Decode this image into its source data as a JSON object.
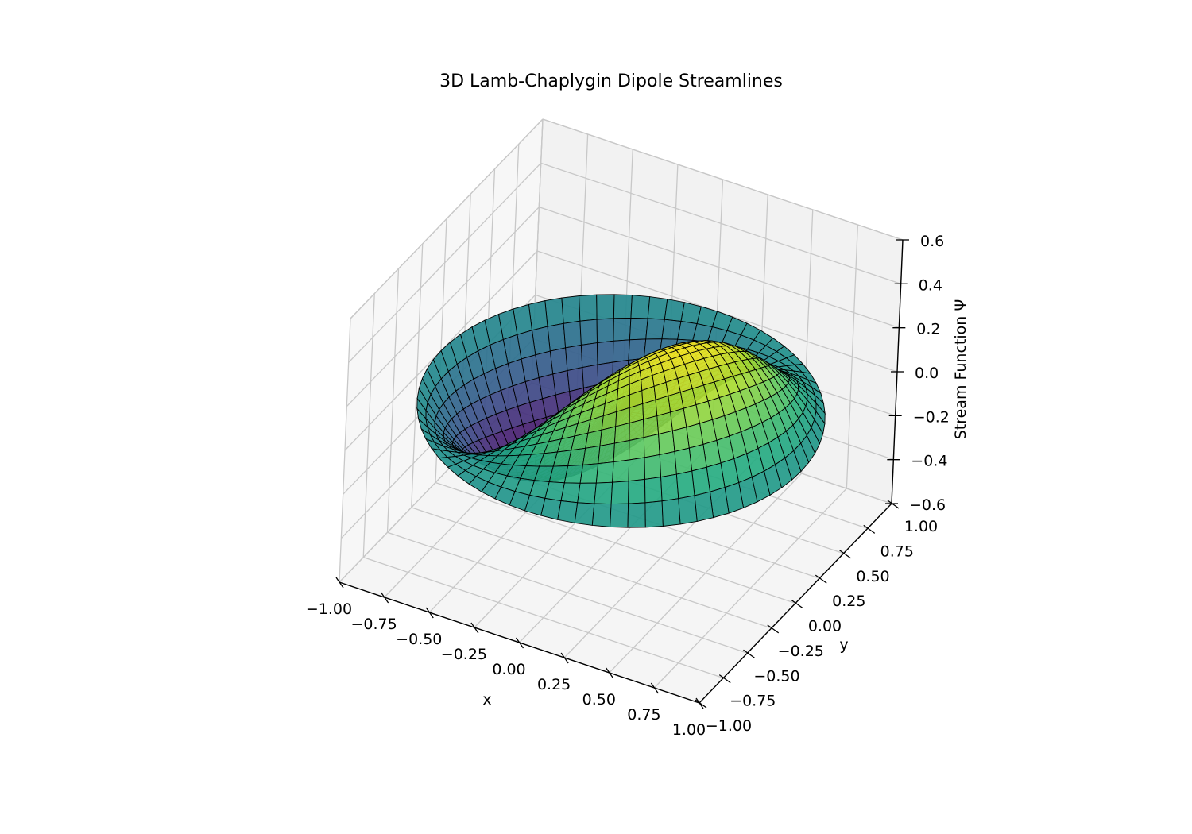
{
  "chart_data": {
    "type": "surface",
    "title": "3D Lamb-Chaplygin Dipole Streamlines",
    "xlabel": "x",
    "ylabel": "y",
    "zlabel": "Stream Function Ψ",
    "xlim": [
      -1.0,
      1.0
    ],
    "ylim": [
      -1.0,
      1.0
    ],
    "zlim": [
      -0.6,
      0.6
    ],
    "x_ticks": [
      "−1.00",
      "−0.75",
      "−0.50",
      "−0.25",
      "0.00",
      "0.25",
      "0.50",
      "0.75",
      "1.00"
    ],
    "y_ticks": [
      "−1.00",
      "−0.75",
      "−0.50",
      "−0.25",
      "0.00",
      "0.25",
      "0.50",
      "0.75",
      "1.00"
    ],
    "z_ticks": [
      "−0.6",
      "−0.4",
      "−0.2",
      "0.0",
      "0.2",
      "0.4",
      "0.6"
    ],
    "x_tick_values": [
      -1.0,
      -0.75,
      -0.5,
      -0.25,
      0.0,
      0.25,
      0.5,
      0.75,
      1.0
    ],
    "y_tick_values": [
      -1.0,
      -0.75,
      -0.5,
      -0.25,
      0.0,
      0.25,
      0.5,
      0.75,
      1.0
    ],
    "z_tick_values": [
      -0.6,
      -0.4,
      -0.2,
      0.0,
      0.2,
      0.4,
      0.6
    ],
    "surface": {
      "domain": "disk r <= 1",
      "max": 0.55,
      "min": -0.55,
      "colormap": "viridis",
      "edgecolor": "#000000"
    },
    "grid": true,
    "colors": {
      "pane_back": "#f2f2f2",
      "pane_side": "#f7f7f7",
      "pane_floor": "#f5f5f5",
      "grid": "#c8c8c8"
    }
  }
}
